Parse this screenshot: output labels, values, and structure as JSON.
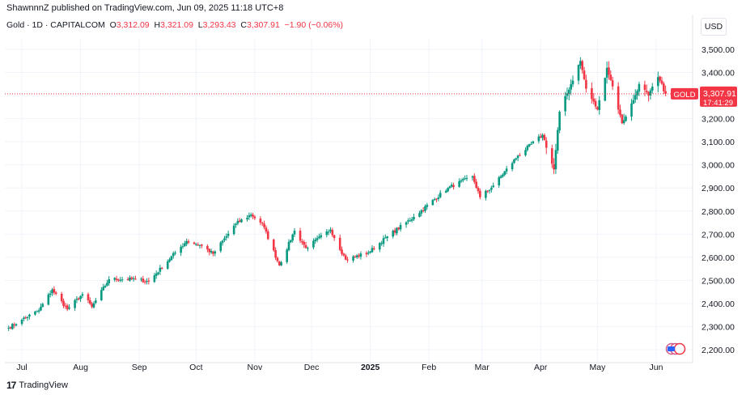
{
  "header": {
    "attribution": "ShawnnnZ published on TradingView.com, Jun 09, 2025 11:18 UTC+8"
  },
  "legend": {
    "symbol": "Gold · 1D · CAPITALCOM",
    "open_label": "O",
    "open": "3,312.09",
    "high_label": "H",
    "high": "3,321.09",
    "low_label": "L",
    "low": "3,293.43",
    "close_label": "C",
    "close": "3,307.91",
    "change": "−1.90 (−0.06%)"
  },
  "price_scale": {
    "currency": "USD",
    "tag_symbol": "GOLD",
    "tag_price": "3,307.91",
    "tag_countdown": "17:41:29"
  },
  "footer": {
    "brand": "TradingView"
  },
  "colors": {
    "up": "#089981",
    "down": "#f23645",
    "grid": "#f0f3fa",
    "price_line": "#f23645"
  },
  "chart_data": {
    "type": "candlestick",
    "title": "Gold · 1D · CAPITALCOM",
    "currency": "USD",
    "last_price": 3307.91,
    "ylim": [
      2200,
      3500
    ],
    "y_ticks": [
      "2,200.00",
      "2,300.00",
      "2,400.00",
      "2,500.00",
      "2,600.00",
      "2,700.00",
      "2,800.00",
      "2,900.00",
      "3,000.00",
      "3,100.00",
      "3,200.00",
      "3,300.00",
      "3,400.00",
      "3,500.00"
    ],
    "x_ticks": [
      "Jul",
      "Aug",
      "Sep",
      "Oct",
      "Nov",
      "Dec",
      "2025",
      "Feb",
      "Mar",
      "Apr",
      "May",
      "Jun"
    ],
    "grid": true,
    "date_range": [
      "2024-06-24",
      "2025-06-06"
    ],
    "daily_close_anchors": [
      {
        "date": "2024-06-24",
        "close": 2295
      },
      {
        "date": "2024-07-01",
        "close": 2330
      },
      {
        "date": "2024-07-10",
        "close": 2370
      },
      {
        "date": "2024-07-17",
        "close": 2460
      },
      {
        "date": "2024-07-25",
        "close": 2375
      },
      {
        "date": "2024-08-02",
        "close": 2440
      },
      {
        "date": "2024-08-07",
        "close": 2385
      },
      {
        "date": "2024-08-16",
        "close": 2505
      },
      {
        "date": "2024-08-30",
        "close": 2505
      },
      {
        "date": "2024-09-06",
        "close": 2495
      },
      {
        "date": "2024-09-20",
        "close": 2620
      },
      {
        "date": "2024-09-26",
        "close": 2670
      },
      {
        "date": "2024-10-04",
        "close": 2650
      },
      {
        "date": "2024-10-10",
        "close": 2615
      },
      {
        "date": "2024-10-22",
        "close": 2745
      },
      {
        "date": "2024-10-30",
        "close": 2785
      },
      {
        "date": "2024-11-05",
        "close": 2745
      },
      {
        "date": "2024-11-14",
        "close": 2565
      },
      {
        "date": "2024-11-22",
        "close": 2715
      },
      {
        "date": "2024-11-28",
        "close": 2640
      },
      {
        "date": "2024-12-11",
        "close": 2720
      },
      {
        "date": "2024-12-19",
        "close": 2590
      },
      {
        "date": "2024-12-31",
        "close": 2620
      },
      {
        "date": "2025-01-10",
        "close": 2690
      },
      {
        "date": "2025-01-24",
        "close": 2775
      },
      {
        "date": "2025-02-11",
        "close": 2900
      },
      {
        "date": "2025-02-24",
        "close": 2950
      },
      {
        "date": "2025-02-28",
        "close": 2860
      },
      {
        "date": "2025-03-07",
        "close": 2910
      },
      {
        "date": "2025-03-20",
        "close": 3040
      },
      {
        "date": "2025-04-02",
        "close": 3130
      },
      {
        "date": "2025-04-08",
        "close": 2980
      },
      {
        "date": "2025-04-11",
        "close": 3230
      },
      {
        "date": "2025-04-22",
        "close": 3450
      },
      {
        "date": "2025-04-25",
        "close": 3330
      },
      {
        "date": "2025-05-01",
        "close": 3240
      },
      {
        "date": "2025-05-06",
        "close": 3420
      },
      {
        "date": "2025-05-09",
        "close": 3340
      },
      {
        "date": "2025-05-14",
        "close": 3180
      },
      {
        "date": "2025-05-20",
        "close": 3280
      },
      {
        "date": "2025-05-23",
        "close": 3350
      },
      {
        "date": "2025-05-28",
        "close": 3300
      },
      {
        "date": "2025-06-02",
        "close": 3380
      },
      {
        "date": "2025-06-06",
        "close": 3308
      }
    ]
  }
}
